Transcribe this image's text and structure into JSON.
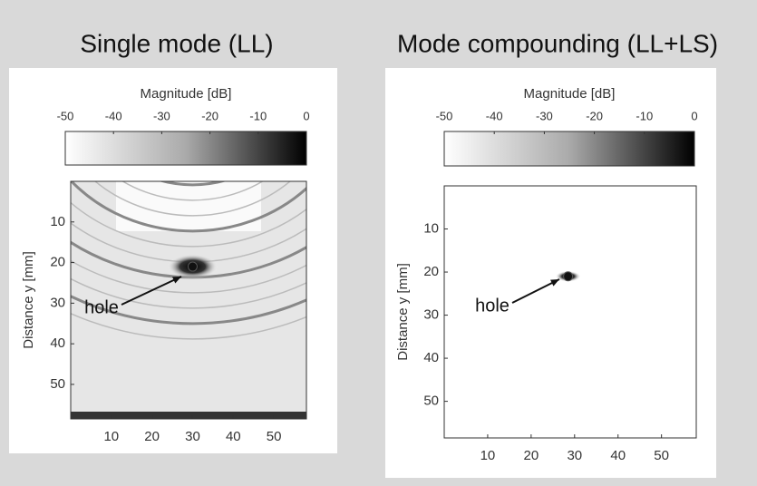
{
  "chart_data": [
    {
      "type": "image",
      "title": "Single mode (LL)",
      "colorbar_label": "Magnitude [dB]",
      "colorbar_lim": [
        -50,
        0
      ],
      "colorbar_ticks": [
        -50,
        -40,
        -30,
        -20,
        -10,
        0
      ],
      "ylabel": "Distance y [mm]",
      "xlim": [
        0,
        58
      ],
      "ylim": [
        0,
        58.5
      ],
      "xticks": [
        10,
        20,
        30,
        40,
        50
      ],
      "yticks": [
        10,
        20,
        30,
        40,
        50
      ],
      "annotation": "hole"
    },
    {
      "type": "image",
      "title": "Mode compounding (LL+LS)",
      "colorbar_label": "Magnitude [dB]",
      "colorbar_lim": [
        -50,
        0
      ],
      "colorbar_ticks": [
        -50,
        -40,
        -30,
        -20,
        -10,
        0
      ],
      "ylabel": "Distance y [mm]",
      "xlim": [
        0,
        58
      ],
      "ylim": [
        0,
        58.5
      ],
      "xticks": [
        10,
        20,
        30,
        40,
        50
      ],
      "yticks": [
        10,
        20,
        30,
        40,
        50
      ],
      "annotation": "hole"
    }
  ]
}
